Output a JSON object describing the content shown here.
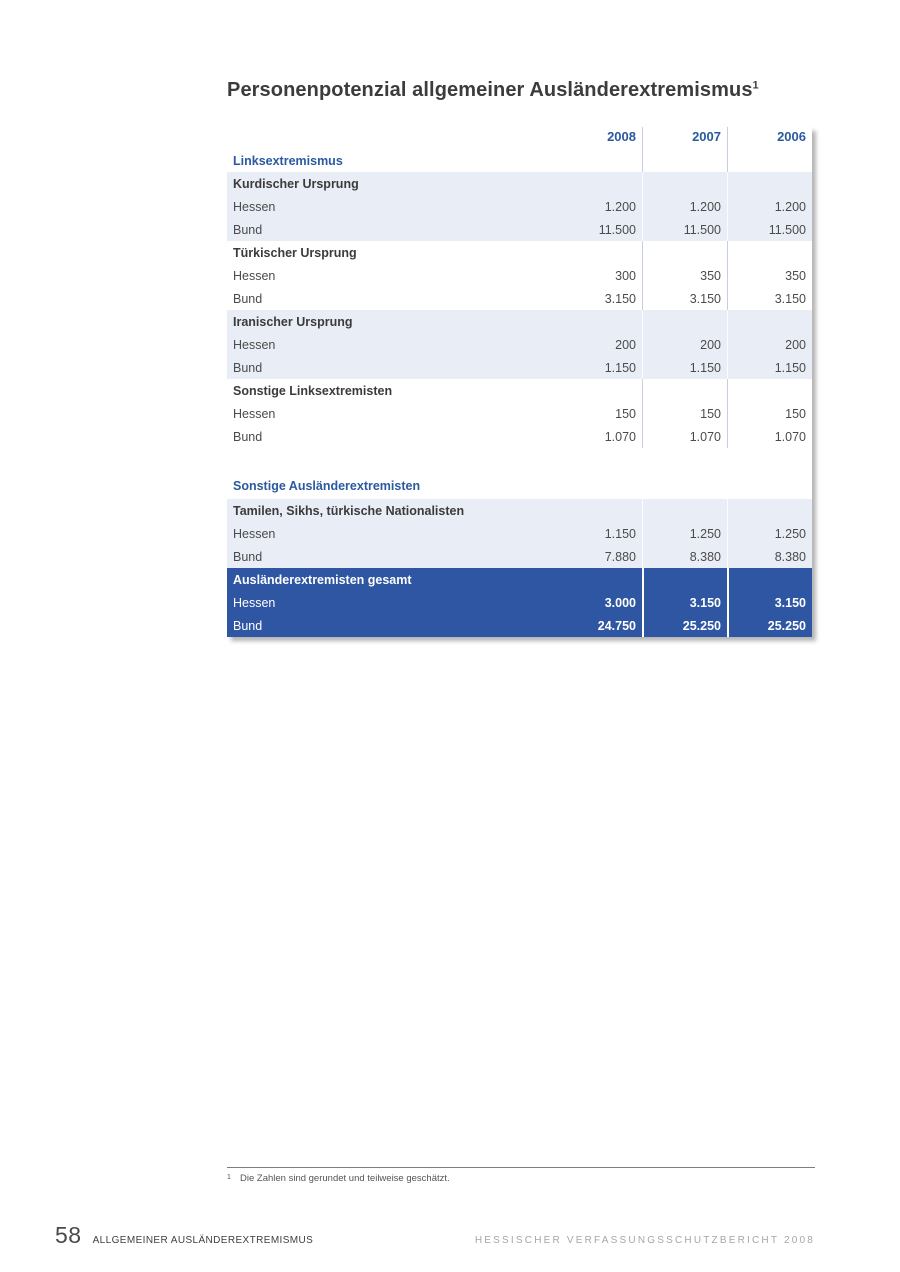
{
  "page": {
    "title": "Personenpotenzial allgemeiner Ausländerextremismus",
    "title_footnote_marker": "1"
  },
  "table": {
    "year_headers": [
      "2008",
      "2007",
      "2006"
    ],
    "sections": {
      "linksextremismus_label": "Linksextremismus",
      "sonstige_label": "Sonstige Ausländerextremisten"
    },
    "groups": [
      {
        "header": "Kurdischer Ursprung",
        "rows": [
          {
            "label": "Hessen",
            "values": [
              "1.200",
              "1.200",
              "1.200"
            ]
          },
          {
            "label": "Bund",
            "values": [
              "11.500",
              "11.500",
              "11.500"
            ]
          }
        ]
      },
      {
        "header": "Türkischer Ursprung",
        "rows": [
          {
            "label": "Hessen",
            "values": [
              "300",
              "350",
              "350"
            ]
          },
          {
            "label": "Bund",
            "values": [
              "3.150",
              "3.150",
              "3.150"
            ]
          }
        ]
      },
      {
        "header": "Iranischer Ursprung",
        "rows": [
          {
            "label": "Hessen",
            "values": [
              "200",
              "200",
              "200"
            ]
          },
          {
            "label": "Bund",
            "values": [
              "1.150",
              "1.150",
              "1.150"
            ]
          }
        ]
      },
      {
        "header": "Sonstige Linksextremisten",
        "rows": [
          {
            "label": "Hessen",
            "values": [
              "150",
              "150",
              "150"
            ]
          },
          {
            "label": "Bund",
            "values": [
              "1.070",
              "1.070",
              "1.070"
            ]
          }
        ]
      },
      {
        "header": "Tamilen, Sikhs, türkische Nationalisten",
        "rows": [
          {
            "label": "Hessen",
            "values": [
              "1.150",
              "1.250",
              "1.250"
            ]
          },
          {
            "label": "Bund",
            "values": [
              "7.880",
              "8.380",
              "8.380"
            ]
          }
        ]
      },
      {
        "header": "Ausländerextremisten gesamt",
        "rows": [
          {
            "label": "Hessen",
            "values": [
              "3.000",
              "3.150",
              "3.150"
            ]
          },
          {
            "label": "Bund",
            "values": [
              "24.750",
              "25.250",
              "25.250"
            ]
          }
        ]
      }
    ]
  },
  "footnote": {
    "marker": "1",
    "text": "Die Zahlen sind gerundet und teilweise geschätzt."
  },
  "footer": {
    "page_number": "58",
    "section_title": "ALLGEMEINER AUSLÄNDEREXTREMISMUS",
    "report_title": "HESSISCHER VERFASSUNGSSCHUTZBERICHT 2008"
  },
  "colors": {
    "accent_blue": "#2b5aa0",
    "total_block_bg": "#2e56a2",
    "shaded_row_bg": "#e9edf6"
  }
}
